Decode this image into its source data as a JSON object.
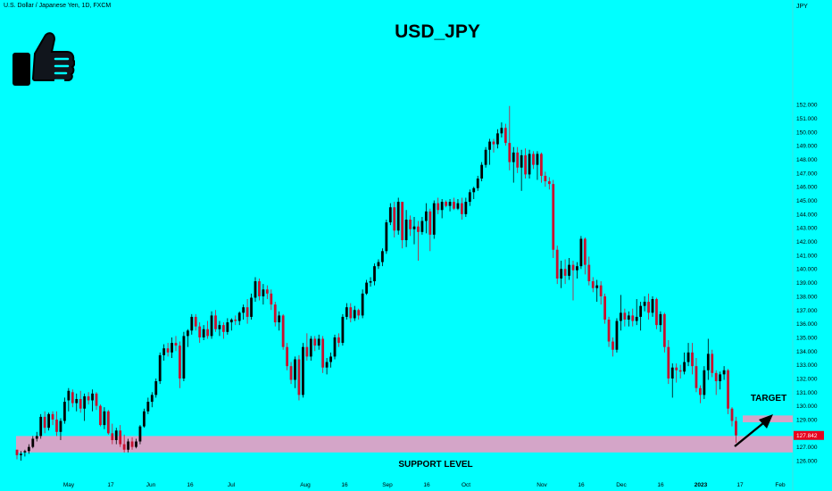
{
  "symbol_line": "U.S. Dollar / Japanese Yen, 1D, FXCM",
  "title": "USD_JPY",
  "price_label": "127.842",
  "colors": {
    "background": "#00FFFF",
    "up": "#000000",
    "down": "#C8102E",
    "zone": "#D4A5C8",
    "price_tag": "#E8001C"
  },
  "icons": [
    "thumbs-up-icon",
    "arrow-icon"
  ],
  "chart_data": {
    "type": "candlestick",
    "title": "USD_JPY",
    "ylabel": "JPY",
    "ylim": [
      125.5,
      152.5
    ],
    "y_ticks": [
      "126.000",
      "127.000",
      "128.000",
      "129.000",
      "130.000",
      "131.000",
      "132.000",
      "133.000",
      "134.000",
      "135.000",
      "136.000",
      "137.000",
      "138.000",
      "139.000",
      "140.000",
      "141.000",
      "142.000",
      "143.000",
      "144.000",
      "145.000",
      "146.000",
      "147.000",
      "148.000",
      "149.000",
      "150.000",
      "151.000",
      "152.000"
    ],
    "x_ticks": [
      "May",
      "17",
      "Jun",
      "16",
      "Jul",
      "Aug",
      "16",
      "Sep",
      "16",
      "Oct",
      "Nov",
      "16",
      "Dec",
      "16",
      "2023",
      "17",
      "Feb"
    ],
    "current_price": 127.842,
    "ohlc": [
      [
        126.8,
        126.8,
        126.1,
        126.4
      ],
      [
        126.4,
        126.7,
        126.0,
        126.5
      ],
      [
        126.6,
        126.8,
        126.3,
        126.7
      ],
      [
        126.7,
        127.2,
        126.5,
        127.0
      ],
      [
        127.0,
        127.8,
        126.9,
        127.6
      ],
      [
        127.6,
        128.1,
        127.4,
        127.8
      ],
      [
        127.8,
        129.4,
        127.6,
        129.2
      ],
      [
        129.2,
        129.6,
        128.0,
        128.4
      ],
      [
        128.4,
        129.5,
        128.2,
        129.4
      ],
      [
        129.4,
        129.6,
        128.6,
        129.0
      ],
      [
        129.0,
        129.6,
        127.8,
        128.1
      ],
      [
        128.1,
        129.1,
        127.5,
        128.9
      ],
      [
        128.9,
        130.6,
        128.7,
        130.3
      ],
      [
        130.4,
        131.3,
        129.6,
        131.1
      ],
      [
        131.0,
        131.2,
        129.9,
        130.2
      ],
      [
        130.2,
        130.9,
        129.6,
        130.5
      ],
      [
        130.5,
        131.1,
        129.5,
        129.8
      ],
      [
        129.8,
        130.9,
        128.9,
        130.7
      ],
      [
        130.7,
        131.0,
        130.1,
        130.4
      ],
      [
        130.4,
        131.2,
        129.6,
        130.9
      ],
      [
        130.9,
        131.0,
        129.7,
        130.0
      ],
      [
        130.0,
        130.1,
        128.5,
        128.6
      ],
      [
        128.6,
        129.9,
        128.3,
        129.6
      ],
      [
        129.6,
        129.7,
        127.9,
        128.0
      ],
      [
        128.0,
        128.7,
        127.2,
        127.5
      ],
      [
        127.5,
        128.4,
        127.2,
        128.2
      ],
      [
        128.2,
        128.6,
        127.0,
        127.2
      ],
      [
        127.2,
        127.9,
        126.6,
        126.8
      ],
      [
        126.8,
        127.6,
        126.6,
        127.4
      ],
      [
        127.4,
        127.7,
        126.8,
        127.0
      ],
      [
        127.0,
        127.6,
        126.9,
        127.4
      ],
      [
        127.4,
        128.6,
        127.2,
        128.5
      ],
      [
        128.5,
        129.8,
        128.4,
        129.6
      ],
      [
        129.6,
        130.6,
        129.4,
        130.3
      ],
      [
        130.3,
        131.0,
        129.9,
        130.8
      ],
      [
        130.8,
        132.0,
        130.6,
        131.8
      ],
      [
        131.8,
        133.9,
        131.6,
        133.7
      ],
      [
        133.7,
        134.5,
        133.3,
        134.2
      ],
      [
        134.2,
        134.6,
        133.6,
        133.9
      ],
      [
        133.9,
        135.0,
        133.5,
        134.6
      ],
      [
        134.6,
        135.1,
        134.0,
        134.4
      ],
      [
        134.4,
        134.7,
        131.3,
        132.0
      ],
      [
        132.0,
        135.4,
        131.8,
        135.1
      ],
      [
        135.1,
        135.6,
        134.3,
        135.5
      ],
      [
        135.5,
        136.7,
        135.2,
        136.5
      ],
      [
        136.5,
        136.7,
        135.5,
        135.8
      ],
      [
        135.8,
        136.1,
        134.6,
        135.0
      ],
      [
        135.0,
        135.9,
        134.8,
        135.6
      ],
      [
        135.6,
        136.2,
        134.9,
        135.1
      ],
      [
        135.1,
        136.9,
        134.9,
        136.6
      ],
      [
        136.6,
        137.0,
        135.4,
        135.6
      ],
      [
        135.6,
        136.2,
        135.1,
        135.9
      ],
      [
        135.9,
        136.1,
        134.9,
        135.4
      ],
      [
        135.4,
        136.4,
        135.2,
        136.1
      ],
      [
        136.1,
        136.4,
        135.5,
        136.3
      ],
      [
        136.3,
        136.6,
        135.9,
        136.2
      ],
      [
        136.2,
        136.9,
        135.9,
        136.8
      ],
      [
        136.8,
        137.4,
        136.3,
        137.2
      ],
      [
        137.2,
        137.8,
        136.0,
        136.5
      ],
      [
        136.5,
        138.2,
        136.3,
        137.9
      ],
      [
        137.9,
        139.4,
        137.6,
        139.1
      ],
      [
        139.1,
        139.3,
        137.7,
        138.0
      ],
      [
        138.0,
        138.9,
        137.4,
        138.5
      ],
      [
        138.5,
        138.8,
        137.8,
        138.2
      ],
      [
        138.2,
        138.5,
        137.0,
        137.4
      ],
      [
        137.4,
        137.6,
        135.8,
        136.1
      ],
      [
        136.1,
        136.9,
        135.5,
        136.6
      ],
      [
        136.6,
        136.7,
        134.1,
        134.3
      ],
      [
        134.3,
        134.6,
        132.6,
        132.9
      ],
      [
        132.9,
        133.2,
        131.6,
        131.9
      ],
      [
        131.9,
        133.6,
        131.3,
        133.4
      ],
      [
        133.4,
        133.7,
        130.4,
        130.8
      ],
      [
        130.8,
        134.6,
        130.6,
        134.3
      ],
      [
        134.3,
        135.3,
        133.3,
        133.6
      ],
      [
        133.6,
        135.1,
        133.3,
        134.9
      ],
      [
        134.9,
        135.1,
        134.0,
        134.4
      ],
      [
        134.4,
        135.2,
        134.1,
        134.9
      ],
      [
        134.9,
        135.1,
        132.4,
        132.8
      ],
      [
        132.8,
        133.5,
        132.3,
        133.2
      ],
      [
        133.2,
        133.9,
        132.8,
        133.6
      ],
      [
        133.6,
        135.2,
        133.4,
        135.0
      ],
      [
        135.0,
        135.3,
        134.3,
        134.6
      ],
      [
        134.6,
        136.7,
        134.4,
        136.5
      ],
      [
        136.5,
        137.5,
        136.3,
        137.2
      ],
      [
        137.2,
        137.5,
        136.1,
        136.4
      ],
      [
        136.4,
        137.3,
        136.2,
        137.0
      ],
      [
        137.0,
        137.1,
        136.3,
        136.6
      ],
      [
        136.6,
        138.5,
        136.4,
        138.2
      ],
      [
        138.2,
        139.2,
        138.1,
        139.0
      ],
      [
        139.0,
        139.4,
        138.7,
        139.1
      ],
      [
        139.1,
        140.4,
        138.8,
        140.2
      ],
      [
        140.2,
        140.7,
        140.0,
        140.5
      ],
      [
        140.5,
        141.5,
        140.2,
        141.3
      ],
      [
        141.3,
        143.6,
        141.1,
        143.4
      ],
      [
        143.4,
        144.8,
        143.2,
        144.5
      ],
      [
        144.5,
        144.9,
        142.3,
        142.8
      ],
      [
        142.8,
        145.2,
        142.5,
        144.9
      ],
      [
        144.9,
        144.9,
        141.5,
        142.1
      ],
      [
        142.1,
        144.3,
        141.6,
        143.6
      ],
      [
        143.6,
        143.9,
        142.4,
        142.9
      ],
      [
        142.9,
        143.8,
        141.8,
        143.1
      ],
      [
        143.1,
        143.5,
        140.6,
        142.7
      ],
      [
        142.7,
        143.8,
        142.5,
        143.5
      ],
      [
        143.5,
        144.8,
        142.6,
        144.2
      ],
      [
        144.2,
        144.4,
        141.3,
        142.5
      ],
      [
        142.5,
        145.0,
        142.2,
        144.8
      ],
      [
        144.8,
        145.2,
        144.0,
        144.3
      ],
      [
        144.3,
        145.1,
        143.7,
        144.9
      ],
      [
        144.9,
        145.0,
        144.5,
        144.6
      ],
      [
        144.6,
        145.1,
        144.2,
        144.9
      ],
      [
        144.9,
        145.2,
        144.3,
        144.4
      ],
      [
        144.4,
        145.1,
        144.3,
        144.8
      ],
      [
        144.8,
        145.2,
        143.6,
        144.0
      ],
      [
        144.0,
        145.2,
        143.8,
        144.9
      ],
      [
        144.9,
        145.8,
        144.6,
        145.6
      ],
      [
        145.6,
        146.0,
        145.1,
        145.9
      ],
      [
        145.9,
        146.8,
        145.7,
        146.6
      ],
      [
        146.6,
        147.8,
        146.4,
        147.6
      ],
      [
        147.6,
        148.9,
        147.4,
        148.7
      ],
      [
        148.7,
        149.5,
        147.6,
        149.3
      ],
      [
        149.3,
        149.5,
        148.5,
        149.1
      ],
      [
        149.1,
        150.2,
        148.8,
        149.9
      ],
      [
        149.9,
        150.7,
        149.6,
        150.3
      ],
      [
        150.3,
        150.6,
        149.0,
        149.2
      ],
      [
        149.2,
        151.9,
        147.2,
        147.8
      ],
      [
        147.8,
        148.9,
        146.3,
        148.5
      ],
      [
        148.5,
        148.9,
        147.0,
        147.4
      ],
      [
        147.4,
        148.7,
        145.7,
        148.3
      ],
      [
        148.3,
        148.8,
        146.6,
        146.9
      ],
      [
        146.9,
        148.7,
        146.6,
        148.4
      ],
      [
        148.4,
        148.6,
        147.3,
        147.6
      ],
      [
        147.6,
        148.6,
        146.5,
        148.4
      ],
      [
        148.4,
        148.5,
        146.3,
        146.8
      ],
      [
        146.8,
        147.1,
        146.0,
        146.4
      ],
      [
        146.4,
        146.7,
        145.8,
        146.2
      ],
      [
        146.2,
        146.5,
        140.8,
        141.4
      ],
      [
        141.4,
        141.7,
        138.9,
        139.3
      ],
      [
        139.3,
        140.6,
        138.6,
        140.0
      ],
      [
        140.0,
        140.7,
        138.9,
        139.5
      ],
      [
        139.5,
        140.8,
        139.2,
        140.3
      ],
      [
        140.3,
        140.6,
        137.7,
        139.9
      ],
      [
        139.9,
        140.5,
        139.3,
        140.2
      ],
      [
        140.2,
        142.4,
        140.0,
        142.2
      ],
      [
        142.2,
        142.3,
        139.6,
        140.3
      ],
      [
        140.3,
        140.9,
        138.8,
        139.1
      ],
      [
        139.1,
        139.4,
        138.3,
        138.6
      ],
      [
        138.6,
        139.2,
        137.6,
        138.8
      ],
      [
        138.8,
        139.1,
        137.4,
        138.0
      ],
      [
        138.0,
        138.2,
        136.0,
        136.3
      ],
      [
        136.3,
        136.5,
        134.3,
        134.7
      ],
      [
        134.7,
        135.0,
        133.6,
        134.1
      ],
      [
        134.1,
        136.4,
        133.9,
        136.2
      ],
      [
        136.2,
        138.1,
        135.5,
        136.8
      ],
      [
        136.8,
        137.1,
        135.8,
        136.3
      ],
      [
        136.3,
        136.9,
        135.8,
        136.6
      ],
      [
        136.6,
        137.1,
        135.8,
        136.2
      ],
      [
        136.2,
        137.8,
        135.9,
        136.5
      ],
      [
        136.5,
        137.6,
        135.5,
        137.3
      ],
      [
        137.3,
        138.0,
        136.9,
        137.6
      ],
      [
        137.6,
        138.2,
        136.3,
        136.8
      ],
      [
        136.8,
        138.0,
        136.5,
        137.8
      ],
      [
        137.8,
        137.9,
        135.6,
        135.9
      ],
      [
        135.9,
        136.9,
        135.4,
        136.7
      ],
      [
        136.7,
        136.8,
        133.9,
        134.3
      ],
      [
        134.3,
        134.8,
        131.6,
        132.0
      ],
      [
        132.0,
        133.1,
        130.6,
        132.8
      ],
      [
        132.8,
        133.1,
        131.7,
        132.6
      ],
      [
        132.6,
        133.0,
        132.0,
        132.5
      ],
      [
        132.5,
        133.9,
        132.3,
        133.2
      ],
      [
        133.2,
        134.6,
        132.9,
        133.9
      ],
      [
        133.9,
        134.6,
        132.3,
        132.9
      ],
      [
        132.9,
        133.5,
        131.0,
        131.3
      ],
      [
        131.3,
        131.5,
        130.2,
        130.8
      ],
      [
        130.8,
        132.9,
        130.5,
        132.6
      ],
      [
        132.6,
        134.9,
        131.9,
        133.8
      ],
      [
        133.8,
        134.1,
        132.1,
        132.4
      ],
      [
        132.4,
        132.6,
        130.8,
        131.8
      ],
      [
        131.8,
        132.5,
        131.2,
        132.3
      ],
      [
        132.3,
        132.9,
        131.9,
        132.6
      ],
      [
        132.6,
        132.7,
        129.4,
        129.8
      ],
      [
        129.8,
        129.9,
        128.5,
        128.9
      ],
      [
        128.9,
        129.2,
        127.3,
        127.842
      ]
    ]
  },
  "annotations": {
    "support_label": "SUPPORT LEVEL",
    "support_zone": [
      126.6,
      127.8
    ],
    "target_label": "TARGET",
    "target_zone": [
      128.8,
      129.3
    ]
  }
}
